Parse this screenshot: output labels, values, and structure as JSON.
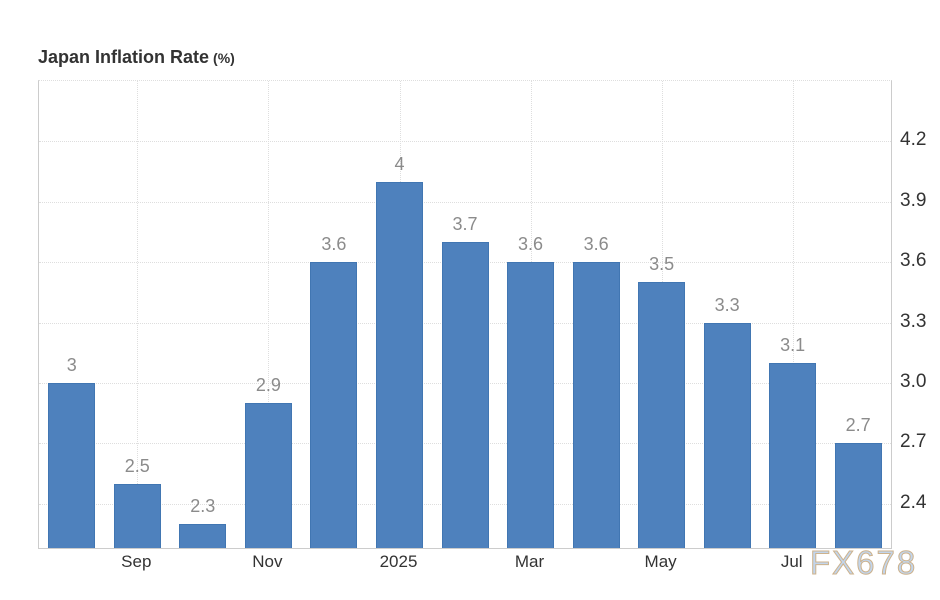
{
  "title": {
    "main": "Japan Inflation Rate",
    "unit": "(%)"
  },
  "watermark": "FX678",
  "colors": {
    "bar_fill": "#4e81bd",
    "bar_border": "#4176b2",
    "value_label": "#8b8b8b",
    "axis_label": "#333333",
    "gridline": "#dedede",
    "axis_border": "#cccccc",
    "watermark_fill": "#c2d5ec",
    "watermark_outline": "#cdb28c"
  },
  "chart_data": {
    "type": "bar",
    "title": "Japan Inflation Rate (%)",
    "values": [
      3,
      2.5,
      2.3,
      2.9,
      3.6,
      4,
      3.7,
      3.6,
      3.6,
      3.5,
      3.3,
      3.1,
      2.7
    ],
    "bar_value_labels": [
      "3",
      "2.5",
      "2.3",
      "2.9",
      "3.6",
      "4",
      "3.7",
      "3.6",
      "3.6",
      "3.5",
      "3.3",
      "3.1",
      "2.7"
    ],
    "x_tick_labels": [
      {
        "bar_index": 1,
        "label": "Sep"
      },
      {
        "bar_index": 3,
        "label": "Nov"
      },
      {
        "bar_index": 5,
        "label": "2025"
      },
      {
        "bar_index": 7,
        "label": "Mar"
      },
      {
        "bar_index": 9,
        "label": "May"
      },
      {
        "bar_index": 11,
        "label": "Jul"
      }
    ],
    "y_tick_labels": [
      "4.2",
      "3.9",
      "3.6",
      "3.3",
      "3.0",
      "2.7",
      "2.4"
    ],
    "y_tick_values": [
      4.2,
      3.9,
      3.6,
      3.3,
      3.0,
      2.7,
      2.4
    ],
    "ylim": [
      2.18,
      4.5
    ],
    "grid": "dotted, horizontal and vertical",
    "y_axis_side": "right",
    "legend": "none"
  }
}
